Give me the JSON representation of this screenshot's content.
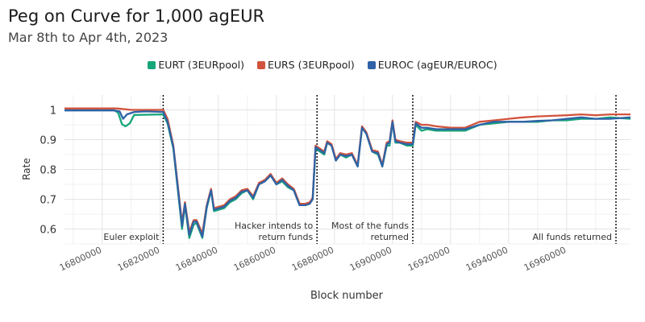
{
  "chart_data": {
    "type": "line",
    "title": "Peg on Curve for 1,000 agEUR",
    "subtitle": "Mar 8th to Apr 4th, 2023",
    "xlabel": "Block number",
    "ylabel": "Rate",
    "xlim": [
      16787000,
      16982000
    ],
    "ylim": [
      0.55,
      1.05
    ],
    "x_ticks": [
      16800000,
      16820000,
      16840000,
      16860000,
      16880000,
      16900000,
      16920000,
      16940000,
      16960000
    ],
    "y_ticks": [
      0.6,
      0.7,
      0.8,
      0.9,
      1
    ],
    "grid": true,
    "legend_position": "top",
    "annotations": [
      {
        "x": 16821000,
        "lines": [
          "Euler exploit"
        ]
      },
      {
        "x": 16874000,
        "lines": [
          "Hacker intends to",
          "return funds"
        ]
      },
      {
        "x": 16907000,
        "lines": [
          "Most of the funds",
          "returned"
        ]
      },
      {
        "x": 16977000,
        "lines": [
          "All funds returned"
        ]
      }
    ],
    "series": [
      {
        "name": "EURT (3EURpool)",
        "color": "#17a57a",
        "points": [
          [
            16787000,
            1.0
          ],
          [
            16797000,
            1.0
          ],
          [
            16804000,
            1.0
          ],
          [
            16805500,
            0.99
          ],
          [
            16806800,
            0.952
          ],
          [
            16808000,
            0.945
          ],
          [
            16809500,
            0.955
          ],
          [
            16811000,
            0.983
          ],
          [
            16821000,
            0.985
          ],
          [
            16822500,
            0.955
          ],
          [
            16824500,
            0.87
          ],
          [
            16827500,
            0.6
          ],
          [
            16828500,
            0.68
          ],
          [
            16830000,
            0.57
          ],
          [
            16831500,
            0.615
          ],
          [
            16832500,
            0.62
          ],
          [
            16834500,
            0.57
          ],
          [
            16836000,
            0.67
          ],
          [
            16837500,
            0.73
          ],
          [
            16838500,
            0.66
          ],
          [
            16842000,
            0.67
          ],
          [
            16844000,
            0.69
          ],
          [
            16846000,
            0.7
          ],
          [
            16848000,
            0.72
          ],
          [
            16850000,
            0.73
          ],
          [
            16852000,
            0.7
          ],
          [
            16854000,
            0.75
          ],
          [
            16856000,
            0.76
          ],
          [
            16858000,
            0.78
          ],
          [
            16860000,
            0.75
          ],
          [
            16862000,
            0.76
          ],
          [
            16864000,
            0.74
          ],
          [
            16866000,
            0.73
          ],
          [
            16868000,
            0.68
          ],
          [
            16870000,
            0.68
          ],
          [
            16871500,
            0.69
          ],
          [
            16872500,
            0.7
          ],
          [
            16873500,
            0.87
          ],
          [
            16875000,
            0.86
          ],
          [
            16876500,
            0.85
          ],
          [
            16877500,
            0.89
          ],
          [
            16879000,
            0.88
          ],
          [
            16880500,
            0.83
          ],
          [
            16882000,
            0.85
          ],
          [
            16884000,
            0.84
          ],
          [
            16886000,
            0.85
          ],
          [
            16888000,
            0.81
          ],
          [
            16889500,
            0.94
          ],
          [
            16891000,
            0.92
          ],
          [
            16893000,
            0.86
          ],
          [
            16895000,
            0.85
          ],
          [
            16896500,
            0.81
          ],
          [
            16898000,
            0.88
          ],
          [
            16899000,
            0.88
          ],
          [
            16900000,
            0.96
          ],
          [
            16901000,
            0.89
          ],
          [
            16902500,
            0.89
          ],
          [
            16905000,
            0.88
          ],
          [
            16907000,
            0.88
          ],
          [
            16908000,
            0.95
          ],
          [
            16910000,
            0.93
          ],
          [
            16912000,
            0.935
          ],
          [
            16915000,
            0.93
          ],
          [
            16925000,
            0.93
          ],
          [
            16930000,
            0.95
          ],
          [
            16935000,
            0.955
          ],
          [
            16940000,
            0.96
          ],
          [
            16950000,
            0.96
          ],
          [
            16955000,
            0.965
          ],
          [
            16960000,
            0.965
          ],
          [
            16965000,
            0.97
          ],
          [
            16970000,
            0.97
          ],
          [
            16975000,
            0.975
          ],
          [
            16982000,
            0.97
          ]
        ]
      },
      {
        "name": "EURS (3EURpool)",
        "color": "#d2533d",
        "points": [
          [
            16787000,
            1.005
          ],
          [
            16797000,
            1.005
          ],
          [
            16805000,
            1.005
          ],
          [
            16810000,
            1.0
          ],
          [
            16815000,
            1.0
          ],
          [
            16821000,
            1.0
          ],
          [
            16822500,
            0.97
          ],
          [
            16824500,
            0.88
          ],
          [
            16827500,
            0.62
          ],
          [
            16828500,
            0.69
          ],
          [
            16830000,
            0.59
          ],
          [
            16831500,
            0.63
          ],
          [
            16832500,
            0.63
          ],
          [
            16834500,
            0.585
          ],
          [
            16836000,
            0.68
          ],
          [
            16837500,
            0.735
          ],
          [
            16838500,
            0.67
          ],
          [
            16842000,
            0.68
          ],
          [
            16844000,
            0.7
          ],
          [
            16846000,
            0.71
          ],
          [
            16848000,
            0.73
          ],
          [
            16850000,
            0.735
          ],
          [
            16852000,
            0.71
          ],
          [
            16854000,
            0.755
          ],
          [
            16856000,
            0.765
          ],
          [
            16858000,
            0.785
          ],
          [
            16860000,
            0.755
          ],
          [
            16862000,
            0.77
          ],
          [
            16864000,
            0.75
          ],
          [
            16866000,
            0.735
          ],
          [
            16868000,
            0.685
          ],
          [
            16870000,
            0.685
          ],
          [
            16871500,
            0.69
          ],
          [
            16872500,
            0.705
          ],
          [
            16873500,
            0.88
          ],
          [
            16875000,
            0.87
          ],
          [
            16876500,
            0.86
          ],
          [
            16877500,
            0.895
          ],
          [
            16879000,
            0.885
          ],
          [
            16880500,
            0.835
          ],
          [
            16882000,
            0.855
          ],
          [
            16884000,
            0.85
          ],
          [
            16886000,
            0.855
          ],
          [
            16888000,
            0.815
          ],
          [
            16889500,
            0.945
          ],
          [
            16891000,
            0.925
          ],
          [
            16893000,
            0.865
          ],
          [
            16895000,
            0.86
          ],
          [
            16896500,
            0.815
          ],
          [
            16898000,
            0.89
          ],
          [
            16899000,
            0.895
          ],
          [
            16900000,
            0.965
          ],
          [
            16901000,
            0.9
          ],
          [
            16902500,
            0.895
          ],
          [
            16905000,
            0.89
          ],
          [
            16907000,
            0.89
          ],
          [
            16908000,
            0.96
          ],
          [
            16910000,
            0.95
          ],
          [
            16912000,
            0.95
          ],
          [
            16915000,
            0.945
          ],
          [
            16920000,
            0.94
          ],
          [
            16925000,
            0.94
          ],
          [
            16930000,
            0.96
          ],
          [
            16935000,
            0.965
          ],
          [
            16940000,
            0.97
          ],
          [
            16945000,
            0.975
          ],
          [
            16950000,
            0.978
          ],
          [
            16955000,
            0.98
          ],
          [
            16960000,
            0.982
          ],
          [
            16965000,
            0.985
          ],
          [
            16970000,
            0.982
          ],
          [
            16975000,
            0.985
          ],
          [
            16982000,
            0.985
          ]
        ]
      },
      {
        "name": "EUROC (agEUR/EUROC)",
        "color": "#2f62a6",
        "points": [
          [
            16787000,
            0.998
          ],
          [
            16797000,
            0.998
          ],
          [
            16804000,
            0.998
          ],
          [
            16806000,
            0.995
          ],
          [
            16807200,
            0.97
          ],
          [
            16808500,
            0.985
          ],
          [
            16811000,
            0.993
          ],
          [
            16815000,
            0.995
          ],
          [
            16821000,
            0.993
          ],
          [
            16822500,
            0.96
          ],
          [
            16824500,
            0.875
          ],
          [
            16827500,
            0.61
          ],
          [
            16828500,
            0.685
          ],
          [
            16830000,
            0.58
          ],
          [
            16831500,
            0.625
          ],
          [
            16832500,
            0.625
          ],
          [
            16834500,
            0.575
          ],
          [
            16836000,
            0.675
          ],
          [
            16837500,
            0.73
          ],
          [
            16838500,
            0.665
          ],
          [
            16842000,
            0.675
          ],
          [
            16844000,
            0.695
          ],
          [
            16846000,
            0.705
          ],
          [
            16848000,
            0.725
          ],
          [
            16850000,
            0.73
          ],
          [
            16852000,
            0.705
          ],
          [
            16854000,
            0.75
          ],
          [
            16856000,
            0.76
          ],
          [
            16858000,
            0.78
          ],
          [
            16860000,
            0.75
          ],
          [
            16862000,
            0.765
          ],
          [
            16864000,
            0.745
          ],
          [
            16866000,
            0.73
          ],
          [
            16868000,
            0.68
          ],
          [
            16870000,
            0.68
          ],
          [
            16871500,
            0.685
          ],
          [
            16872500,
            0.7
          ],
          [
            16873500,
            0.875
          ],
          [
            16875000,
            0.865
          ],
          [
            16876500,
            0.855
          ],
          [
            16877500,
            0.89
          ],
          [
            16879000,
            0.88
          ],
          [
            16880500,
            0.83
          ],
          [
            16882000,
            0.85
          ],
          [
            16884000,
            0.845
          ],
          [
            16886000,
            0.85
          ],
          [
            16888000,
            0.81
          ],
          [
            16889500,
            0.94
          ],
          [
            16891000,
            0.92
          ],
          [
            16893000,
            0.86
          ],
          [
            16895000,
            0.855
          ],
          [
            16896500,
            0.81
          ],
          [
            16898000,
            0.885
          ],
          [
            16899000,
            0.89
          ],
          [
            16900000,
            0.96
          ],
          [
            16901000,
            0.895
          ],
          [
            16902500,
            0.89
          ],
          [
            16905000,
            0.885
          ],
          [
            16907000,
            0.885
          ],
          [
            16908000,
            0.955
          ],
          [
            16910000,
            0.94
          ],
          [
            16912000,
            0.94
          ],
          [
            16915000,
            0.935
          ],
          [
            16920000,
            0.935
          ],
          [
            16925000,
            0.935
          ],
          [
            16930000,
            0.95
          ],
          [
            16935000,
            0.96
          ],
          [
            16940000,
            0.96
          ],
          [
            16945000,
            0.96
          ],
          [
            16950000,
            0.963
          ],
          [
            16955000,
            0.965
          ],
          [
            16960000,
            0.97
          ],
          [
            16965000,
            0.975
          ],
          [
            16970000,
            0.97
          ],
          [
            16975000,
            0.97
          ],
          [
            16982000,
            0.975
          ]
        ]
      }
    ]
  }
}
